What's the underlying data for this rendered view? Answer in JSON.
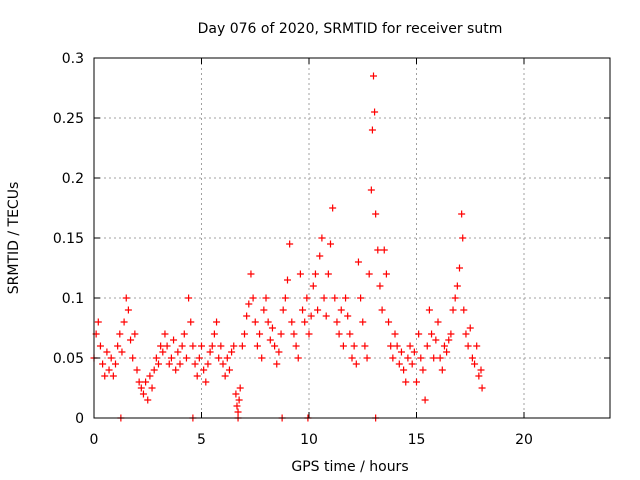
{
  "chart_data": {
    "type": "scatter",
    "title": "Day 076 of 2020, SRMTID for receiver sutm",
    "xlabel": "GPS time / hours",
    "ylabel": "SRMTID / TECUs",
    "xlim": [
      0,
      24
    ],
    "ylim": [
      0,
      0.3
    ],
    "x_ticks": [
      0,
      5,
      10,
      15,
      20
    ],
    "x_tick_labels": [
      "0",
      "5",
      "10",
      "15",
      "20"
    ],
    "y_ticks": [
      0,
      0.05,
      0.1,
      0.15,
      0.2,
      0.25,
      0.3
    ],
    "y_tick_labels": [
      "0",
      "0.05",
      "0.1",
      "0.15",
      "0.2",
      "0.25",
      "0.3"
    ],
    "grid": true,
    "marker": "plus",
    "color": "#ff0000",
    "series": [
      {
        "name": "SRMTID",
        "points": [
          [
            0.0,
            0.05
          ],
          [
            0.1,
            0.07
          ],
          [
            0.2,
            0.08
          ],
          [
            0.3,
            0.06
          ],
          [
            0.4,
            0.045
          ],
          [
            0.5,
            0.035
          ],
          [
            0.6,
            0.055
          ],
          [
            0.7,
            0.04
          ],
          [
            0.8,
            0.05
          ],
          [
            0.9,
            0.035
          ],
          [
            1.0,
            0.045
          ],
          [
            1.1,
            0.06
          ],
          [
            1.2,
            0.07
          ],
          [
            1.3,
            0.055
          ],
          [
            1.4,
            0.08
          ],
          [
            1.5,
            0.1
          ],
          [
            1.6,
            0.09
          ],
          [
            1.7,
            0.065
          ],
          [
            1.8,
            0.05
          ],
          [
            1.9,
            0.07
          ],
          [
            2.0,
            0.04
          ],
          [
            2.1,
            0.03
          ],
          [
            2.2,
            0.025
          ],
          [
            2.3,
            0.02
          ],
          [
            2.4,
            0.03
          ],
          [
            2.5,
            0.015
          ],
          [
            2.6,
            0.035
          ],
          [
            2.7,
            0.025
          ],
          [
            2.8,
            0.04
          ],
          [
            2.9,
            0.05
          ],
          [
            3.0,
            0.045
          ],
          [
            3.1,
            0.06
          ],
          [
            3.2,
            0.055
          ],
          [
            3.3,
            0.07
          ],
          [
            3.4,
            0.06
          ],
          [
            3.5,
            0.045
          ],
          [
            3.6,
            0.05
          ],
          [
            3.7,
            0.065
          ],
          [
            3.8,
            0.04
          ],
          [
            3.9,
            0.055
          ],
          [
            4.0,
            0.045
          ],
          [
            4.1,
            0.06
          ],
          [
            4.2,
            0.07
          ],
          [
            4.3,
            0.05
          ],
          [
            4.4,
            0.1
          ],
          [
            4.5,
            0.08
          ],
          [
            4.6,
            0.06
          ],
          [
            4.7,
            0.045
          ],
          [
            4.8,
            0.035
          ],
          [
            4.9,
            0.05
          ],
          [
            5.0,
            0.06
          ],
          [
            5.1,
            0.04
          ],
          [
            5.2,
            0.03
          ],
          [
            5.3,
            0.045
          ],
          [
            5.4,
            0.055
          ],
          [
            5.5,
            0.06
          ],
          [
            5.6,
            0.07
          ],
          [
            5.7,
            0.08
          ],
          [
            5.8,
            0.05
          ],
          [
            5.9,
            0.06
          ],
          [
            6.0,
            0.045
          ],
          [
            6.1,
            0.035
          ],
          [
            6.2,
            0.05
          ],
          [
            6.3,
            0.04
          ],
          [
            6.4,
            0.055
          ],
          [
            6.5,
            0.06
          ],
          [
            6.6,
            0.02
          ],
          [
            6.65,
            0.01
          ],
          [
            6.7,
            0.005
          ],
          [
            6.75,
            0.015
          ],
          [
            6.8,
            0.025
          ],
          [
            6.9,
            0.06
          ],
          [
            7.0,
            0.07
          ],
          [
            7.1,
            0.085
          ],
          [
            7.2,
            0.095
          ],
          [
            7.3,
            0.12
          ],
          [
            7.4,
            0.1
          ],
          [
            7.5,
            0.08
          ],
          [
            7.6,
            0.06
          ],
          [
            7.7,
            0.07
          ],
          [
            7.8,
            0.05
          ],
          [
            7.9,
            0.09
          ],
          [
            8.0,
            0.1
          ],
          [
            8.1,
            0.08
          ],
          [
            8.2,
            0.065
          ],
          [
            8.3,
            0.075
          ],
          [
            8.4,
            0.06
          ],
          [
            8.5,
            0.045
          ],
          [
            8.6,
            0.055
          ],
          [
            8.7,
            0.07
          ],
          [
            8.8,
            0.09
          ],
          [
            8.9,
            0.1
          ],
          [
            9.0,
            0.115
          ],
          [
            9.1,
            0.145
          ],
          [
            9.2,
            0.08
          ],
          [
            9.3,
            0.07
          ],
          [
            9.4,
            0.06
          ],
          [
            9.5,
            0.05
          ],
          [
            9.6,
            0.12
          ],
          [
            9.7,
            0.09
          ],
          [
            9.8,
            0.08
          ],
          [
            9.9,
            0.1
          ],
          [
            10.0,
            0.07
          ],
          [
            10.1,
            0.085
          ],
          [
            10.2,
            0.11
          ],
          [
            10.3,
            0.12
          ],
          [
            10.4,
            0.09
          ],
          [
            10.5,
            0.135
          ],
          [
            10.6,
            0.15
          ],
          [
            10.7,
            0.1
          ],
          [
            10.8,
            0.085
          ],
          [
            10.9,
            0.12
          ],
          [
            11.0,
            0.145
          ],
          [
            11.1,
            0.175
          ],
          [
            11.2,
            0.1
          ],
          [
            11.3,
            0.08
          ],
          [
            11.4,
            0.07
          ],
          [
            11.5,
            0.09
          ],
          [
            11.6,
            0.06
          ],
          [
            11.7,
            0.1
          ],
          [
            11.8,
            0.085
          ],
          [
            11.9,
            0.07
          ],
          [
            12.0,
            0.05
          ],
          [
            12.1,
            0.06
          ],
          [
            12.2,
            0.045
          ],
          [
            12.3,
            0.13
          ],
          [
            12.4,
            0.1
          ],
          [
            12.5,
            0.08
          ],
          [
            12.6,
            0.06
          ],
          [
            12.7,
            0.05
          ],
          [
            12.8,
            0.12
          ],
          [
            12.9,
            0.19
          ],
          [
            12.95,
            0.24
          ],
          [
            13.0,
            0.285
          ],
          [
            13.05,
            0.255
          ],
          [
            13.1,
            0.17
          ],
          [
            13.2,
            0.14
          ],
          [
            13.3,
            0.11
          ],
          [
            13.4,
            0.09
          ],
          [
            13.5,
            0.14
          ],
          [
            13.6,
            0.12
          ],
          [
            13.7,
            0.08
          ],
          [
            13.8,
            0.06
          ],
          [
            13.9,
            0.05
          ],
          [
            14.0,
            0.07
          ],
          [
            14.1,
            0.06
          ],
          [
            14.2,
            0.045
          ],
          [
            14.3,
            0.055
          ],
          [
            14.4,
            0.04
          ],
          [
            14.5,
            0.03
          ],
          [
            14.6,
            0.05
          ],
          [
            14.7,
            0.06
          ],
          [
            14.8,
            0.045
          ],
          [
            14.9,
            0.055
          ],
          [
            15.0,
            0.03
          ],
          [
            15.1,
            0.07
          ],
          [
            15.2,
            0.05
          ],
          [
            15.3,
            0.04
          ],
          [
            15.4,
            0.015
          ],
          [
            15.5,
            0.06
          ],
          [
            15.6,
            0.09
          ],
          [
            15.7,
            0.07
          ],
          [
            15.8,
            0.05
          ],
          [
            15.9,
            0.065
          ],
          [
            16.0,
            0.08
          ],
          [
            16.1,
            0.05
          ],
          [
            16.2,
            0.04
          ],
          [
            16.3,
            0.06
          ],
          [
            16.4,
            0.055
          ],
          [
            16.5,
            0.065
          ],
          [
            16.6,
            0.07
          ],
          [
            16.7,
            0.09
          ],
          [
            16.8,
            0.1
          ],
          [
            16.9,
            0.11
          ],
          [
            17.0,
            0.125
          ],
          [
            17.1,
            0.17
          ],
          [
            17.15,
            0.15
          ],
          [
            17.2,
            0.09
          ],
          [
            17.3,
            0.07
          ],
          [
            17.4,
            0.06
          ],
          [
            17.5,
            0.075
          ],
          [
            17.6,
            0.05
          ],
          [
            17.7,
            0.045
          ],
          [
            17.8,
            0.06
          ],
          [
            17.9,
            0.035
          ],
          [
            18.0,
            0.04
          ],
          [
            18.05,
            0.025
          ],
          [
            1.25,
            0.0
          ],
          [
            4.6,
            0.0
          ],
          [
            6.7,
            0.0
          ],
          [
            8.75,
            0.0
          ],
          [
            9.95,
            0.0
          ],
          [
            13.1,
            0.0
          ]
        ]
      }
    ]
  }
}
